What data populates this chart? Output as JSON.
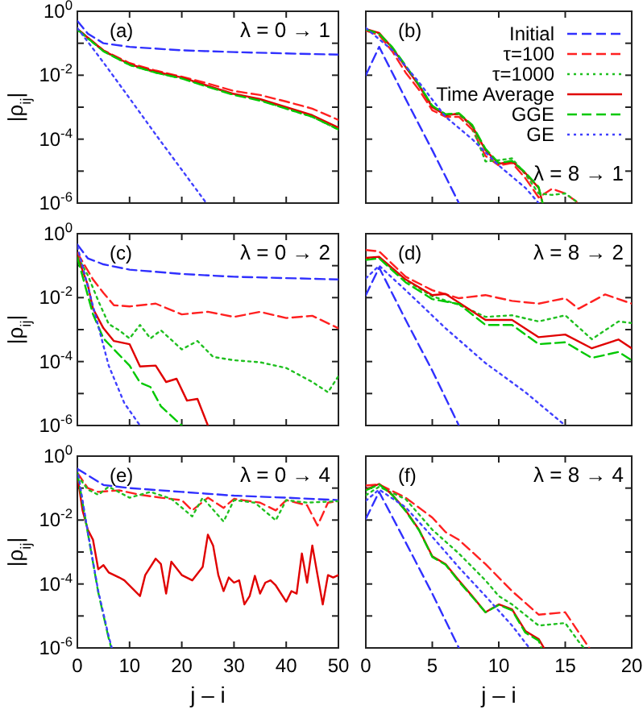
{
  "chart_data": [
    {
      "type": "line",
      "ylabel": "|ρ$_{ij}$|",
      "annotations": [
        "(a)",
        "λ = 0 → 1"
      ],
      "log": "y",
      "xlim": [
        0,
        50
      ],
      "xticks": [
        0,
        10,
        20,
        30,
        40,
        50
      ],
      "ylim": [
        1e-06,
        1
      ],
      "yticks": [
        {
          "value": 1,
          "label": "10$^{0}$"
        },
        {
          "value": 0.1,
          "label": null
        },
        {
          "value": 0.01,
          "label": "10$^{-2}$"
        },
        {
          "value": 0.001,
          "label": null
        },
        {
          "value": 0.0001,
          "label": "10$^{-4}$"
        },
        {
          "value": 1e-05,
          "label": null
        },
        {
          "value": 1e-06,
          "label": "10$^{-6}$"
        }
      ],
      "tick_labels": "y",
      "series": [
        {
          "color": "#3030ff",
          "line_style": "dashed",
          "x": [
            0,
            2,
            5,
            10,
            20,
            30,
            40,
            50
          ],
          "values": [
            0.5,
            0.2,
            0.1,
            0.077,
            0.06,
            0.053,
            0.048,
            0.044
          ]
        },
        {
          "color": "#ff2020",
          "line_style": "dashed",
          "x": [
            0,
            5,
            10,
            15,
            20,
            25,
            30,
            35,
            40,
            45,
            50
          ],
          "values": [
            0.28,
            0.06,
            0.024,
            0.014,
            0.009,
            0.0055,
            0.0032,
            0.0024,
            0.0015,
            0.0009,
            0.0004
          ]
        },
        {
          "color": "#20c020",
          "line_style": "dotted",
          "x": [
            0,
            5,
            10,
            15,
            20,
            25,
            30,
            35,
            40,
            45,
            50
          ],
          "values": [
            0.26,
            0.057,
            0.021,
            0.012,
            0.008,
            0.0045,
            0.0025,
            0.0017,
            0.0009,
            0.0005,
            0.0002
          ]
        },
        {
          "color": "#e00000",
          "line_style": "solid",
          "x": [
            0,
            5,
            10,
            15,
            20,
            25,
            30,
            35,
            40,
            45,
            50
          ],
          "values": [
            0.28,
            0.059,
            0.022,
            0.013,
            0.0085,
            0.0047,
            0.0026,
            0.0018,
            0.001,
            0.00056,
            0.00023
          ]
        },
        {
          "color": "#00c800",
          "line_style": "dashed",
          "x": [
            0,
            5,
            10,
            15,
            20,
            25,
            30,
            35,
            40,
            45,
            50
          ],
          "values": [
            0.27,
            0.056,
            0.021,
            0.012,
            0.0079,
            0.0043,
            0.0024,
            0.0016,
            0.0009,
            0.0005,
            0.0002
          ]
        },
        {
          "color": "#4040ff",
          "line_style": "dotted",
          "x": [
            0,
            5,
            10,
            15,
            20,
            24.7
          ],
          "values": [
            0.3,
            0.025,
            0.0019,
            0.00014,
            1.1e-05,
            1e-06
          ]
        }
      ]
    },
    {
      "type": "line",
      "annotations": [
        "(b)",
        "λ = 8 → 1"
      ],
      "log": "y",
      "xlim": [
        0,
        20
      ],
      "xticks": [
        0,
        5,
        10,
        15,
        20
      ],
      "ylim": [
        1e-06,
        1
      ],
      "yticks": [
        {
          "value": 1,
          "label": null
        },
        {
          "value": 0.1,
          "label": null
        },
        {
          "value": 0.01,
          "label": null
        },
        {
          "value": 0.001,
          "label": null
        },
        {
          "value": 0.0001,
          "label": null
        },
        {
          "value": 1e-05,
          "label": null
        },
        {
          "value": 1e-06,
          "label": null
        }
      ],
      "tick_labels": false,
      "legend": "top right",
      "series": [
        {
          "name": "Initial",
          "color": "#3030ff",
          "line_style": "dashed",
          "x": [
            0,
            1,
            3,
            5,
            7
          ],
          "values": [
            0.01,
            0.077,
            0.0018,
            4.5e-05,
            1e-06
          ]
        },
        {
          "name": "τ=100",
          "color": "#ff2020",
          "line_style": "dashed",
          "x": [
            0,
            1,
            2,
            3,
            4,
            5,
            6,
            7,
            8,
            9,
            10,
            11,
            12,
            13,
            14,
            15,
            16
          ],
          "values": [
            0.25,
            0.18,
            0.055,
            0.012,
            0.0035,
            0.0008,
            0.0005,
            0.0005,
            0.0002,
            3e-05,
            1.5e-05,
            1.8e-05,
            6e-06,
            1.5e-06,
            2.8e-06,
            2e-06,
            1e-06
          ]
        },
        {
          "name": "τ=1000",
          "color": "#20c020",
          "line_style": "dotted",
          "x": [
            0,
            1,
            2,
            3,
            4,
            5,
            6,
            7,
            8,
            9,
            10,
            11,
            12,
            13,
            14,
            15,
            16
          ],
          "values": [
            0.27,
            0.2,
            0.07,
            0.018,
            0.005,
            0.0011,
            0.0006,
            0.0006,
            0.00025,
            2e-05,
            2.2e-05,
            2.5e-05,
            8e-06,
            2e-06,
            1.8e-06,
            2e-06,
            1e-06
          ]
        },
        {
          "name": "Time Average",
          "color": "#e00000",
          "line_style": "solid",
          "x": [
            0,
            1,
            2,
            3,
            4,
            5,
            6,
            7,
            8,
            9,
            10,
            11,
            12,
            13,
            13.3
          ],
          "values": [
            0.28,
            0.21,
            0.071,
            0.018,
            0.0047,
            0.001,
            0.00056,
            0.00063,
            0.00026,
            4.5e-05,
            1.7e-05,
            2e-05,
            8.7e-06,
            3e-06,
            1e-06
          ]
        },
        {
          "name": "GGE",
          "color": "#00c800",
          "line_style": "dashed",
          "x": [
            0,
            1,
            2,
            3,
            4,
            5,
            6,
            7,
            8,
            9,
            10,
            11,
            12,
            13,
            13.3
          ],
          "values": [
            0.27,
            0.2,
            0.075,
            0.02,
            0.005,
            0.0011,
            0.0006,
            0.00065,
            0.00028,
            5e-05,
            1.8e-05,
            2.1e-05,
            9e-06,
            3.2e-06,
            1e-06
          ]
        },
        {
          "name": "GE",
          "color": "#4040ff",
          "line_style": "dotted",
          "x": [
            0,
            2,
            4,
            6,
            8,
            10,
            12,
            13
          ],
          "values": [
            0.3,
            0.06,
            0.006,
            0.0005,
            0.0001,
            1.5e-05,
            3e-06,
            1e-06
          ]
        }
      ]
    },
    {
      "type": "line",
      "ylabel": "|ρ$_{ij}$|",
      "annotations": [
        "(c)",
        "λ = 0 → 2"
      ],
      "log": "y",
      "xlim": [
        0,
        50
      ],
      "xticks": [
        0,
        10,
        20,
        30,
        40,
        50
      ],
      "ylim": [
        1e-06,
        1
      ],
      "yticks": [
        {
          "value": 1,
          "label": "10$^{0}$"
        },
        {
          "value": 0.1,
          "label": null
        },
        {
          "value": 0.01,
          "label": "10$^{-2}$"
        },
        {
          "value": 0.001,
          "label": null
        },
        {
          "value": 0.0001,
          "label": "10$^{-4}$"
        },
        {
          "value": 1e-05,
          "label": null
        },
        {
          "value": 1e-06,
          "label": "10$^{-6}$"
        }
      ],
      "tick_labels": "y",
      "series": [
        {
          "color": "#3030ff",
          "line_style": "dashed",
          "x": [
            0,
            2,
            5,
            10,
            20,
            30,
            50
          ],
          "values": [
            0.46,
            0.17,
            0.11,
            0.075,
            0.055,
            0.045,
            0.037
          ]
        },
        {
          "color": "#ff2020",
          "line_style": "dashed",
          "x": [
            0,
            3,
            5,
            7,
            10,
            15,
            20,
            25,
            30,
            35,
            40,
            45,
            50
          ],
          "values": [
            0.25,
            0.037,
            0.014,
            0.0058,
            0.0053,
            0.0065,
            0.003,
            0.0036,
            0.0025,
            0.0036,
            0.0023,
            0.0027,
            0.0011
          ]
        },
        {
          "color": "#20c020",
          "line_style": "dotted",
          "x": [
            0,
            2,
            4,
            6,
            8,
            10,
            12,
            14,
            16,
            20,
            23,
            26,
            30,
            35,
            40,
            45,
            48,
            50
          ],
          "values": [
            0.2,
            0.05,
            0.008,
            0.0015,
            0.00095,
            0.00053,
            0.0014,
            0.00053,
            0.00095,
            0.00024,
            0.00044,
            0.00014,
            0.00011,
            9.5e-05,
            6.3e-05,
            2.3e-05,
            1.1e-05,
            3.5e-05
          ]
        },
        {
          "color": "#e00000",
          "line_style": "solid",
          "x": [
            0,
            2,
            3,
            5,
            7,
            10,
            12,
            15,
            17,
            19,
            21,
            23,
            25
          ],
          "values": [
            0.2,
            0.025,
            0.0045,
            0.0011,
            0.00044,
            0.00035,
            7e-05,
            7.5e-05,
            2.3e-05,
            2.9e-05,
            6e-06,
            6.8e-06,
            1e-06
          ]
        },
        {
          "color": "#00c800",
          "line_style": "dashed",
          "x": [
            0,
            3,
            5,
            7,
            10,
            12,
            14,
            16,
            20
          ],
          "values": [
            0.18,
            0.003,
            0.00053,
            0.00024,
            7.5e-05,
            2.2e-05,
            1.6e-05,
            4e-06,
            1e-06
          ]
        },
        {
          "color": "#4040ff",
          "line_style": "dotted",
          "x": [
            0,
            3,
            6,
            9,
            12
          ],
          "values": [
            0.4,
            0.0054,
            7.5e-05,
            5e-06,
            1e-06
          ]
        }
      ]
    },
    {
      "type": "line",
      "annotations": [
        "(d)",
        "λ = 8 → 2"
      ],
      "log": "y",
      "xlim": [
        0,
        20
      ],
      "xticks": [
        0,
        5,
        10,
        15,
        20
      ],
      "ylim": [
        1e-06,
        1
      ],
      "yticks": [
        {
          "value": 1,
          "label": null
        },
        {
          "value": 0.1,
          "label": null
        },
        {
          "value": 0.01,
          "label": null
        },
        {
          "value": 0.001,
          "label": null
        },
        {
          "value": 0.0001,
          "label": null
        },
        {
          "value": 1e-05,
          "label": null
        },
        {
          "value": 1e-06,
          "label": null
        }
      ],
      "tick_labels": false,
      "series": [
        {
          "color": "#3030ff",
          "line_style": "dashed",
          "x": [
            0,
            1,
            3,
            5,
            7
          ],
          "values": [
            0.012,
            0.087,
            0.002,
            5.2e-05,
            1e-06
          ]
        },
        {
          "color": "#ff2020",
          "line_style": "dashed",
          "x": [
            0,
            1,
            3,
            5,
            7,
            9,
            11,
            13,
            15,
            16,
            18,
            20
          ],
          "values": [
            0.31,
            0.28,
            0.045,
            0.017,
            0.0096,
            0.012,
            0.0079,
            0.0065,
            0.0096,
            0.0045,
            0.0126,
            0.0065
          ]
        },
        {
          "color": "#20c020",
          "line_style": "dotted",
          "x": [
            0,
            1,
            3,
            5,
            7,
            9,
            11,
            13,
            15,
            17,
            19,
            20
          ],
          "values": [
            0.16,
            0.18,
            0.035,
            0.011,
            0.006,
            0.0025,
            0.0028,
            0.0018,
            0.0028,
            0.0005,
            0.0018,
            0.0016
          ]
        },
        {
          "color": "#e00000",
          "line_style": "solid",
          "x": [
            0,
            1,
            3,
            5,
            6,
            9,
            11,
            13,
            15,
            17,
            19,
            20
          ],
          "values": [
            0.175,
            0.19,
            0.037,
            0.012,
            0.013,
            0.002,
            0.002,
            0.00058,
            0.0007,
            0.00026,
            0.00049,
            0.00026
          ]
        },
        {
          "color": "#00c800",
          "line_style": "dashed",
          "x": [
            0,
            1,
            3,
            5,
            7,
            9,
            11,
            13,
            15,
            17,
            19,
            20
          ],
          "values": [
            0.15,
            0.17,
            0.03,
            0.009,
            0.0063,
            0.0014,
            0.0014,
            0.00035,
            0.0004,
            0.00013,
            0.0002,
            0.00011
          ]
        },
        {
          "color": "#4040ff",
          "line_style": "dotted",
          "x": [
            0,
            1,
            3,
            6,
            9,
            12,
            15
          ],
          "values": [
            0.04,
            0.1,
            0.017,
            0.0011,
            9e-05,
            1.1e-05,
            1e-06
          ]
        }
      ]
    },
    {
      "type": "line",
      "xlabel": "j – i",
      "ylabel": "|ρ$_{ij}$|",
      "annotations": [
        "(e)",
        "λ = 0 → 4"
      ],
      "log": "y",
      "xlim": [
        0,
        50
      ],
      "xticks": [
        0,
        10,
        20,
        30,
        40,
        50
      ],
      "ylim": [
        1e-06,
        1
      ],
      "yticks": [
        {
          "value": 1,
          "label": "10$^{0}$"
        },
        {
          "value": 0.1,
          "label": null
        },
        {
          "value": 0.01,
          "label": "10$^{-2}$"
        },
        {
          "value": 0.001,
          "label": null
        },
        {
          "value": 0.0001,
          "label": "10$^{-4}$"
        },
        {
          "value": 1e-05,
          "label": null
        },
        {
          "value": 1e-06,
          "label": "10$^{-6}$"
        }
      ],
      "series": [
        {
          "color": "#3030ff",
          "line_style": "dashed",
          "x": [
            0,
            5,
            10,
            20,
            30,
            40,
            50
          ],
          "values": [
            0.4,
            0.125,
            0.1,
            0.076,
            0.058,
            0.05,
            0.042
          ]
        },
        {
          "color": "#ff2020",
          "line_style": "dashed",
          "x": [
            0,
            2,
            4,
            8,
            12,
            16,
            20,
            22,
            25,
            28,
            30,
            35,
            38,
            40,
            44,
            46,
            48,
            50
          ],
          "values": [
            0.3,
            0.1,
            0.076,
            0.085,
            0.062,
            0.05,
            0.042,
            0.02,
            0.05,
            0.024,
            0.046,
            0.035,
            0.02,
            0.042,
            0.029,
            0.0067,
            0.035,
            0.039
          ]
        },
        {
          "color": "#20c020",
          "line_style": "dotted",
          "x": [
            0,
            2,
            4,
            6,
            10,
            14,
            18,
            22,
            24,
            28,
            30,
            34,
            38,
            40,
            44,
            50
          ],
          "values": [
            0.25,
            0.09,
            0.062,
            0.11,
            0.05,
            0.076,
            0.046,
            0.013,
            0.05,
            0.009,
            0.042,
            0.035,
            0.0098,
            0.042,
            0.035,
            0.039
          ]
        },
        {
          "color": "#e00000",
          "line_style": "solid",
          "x": [
            0,
            1,
            2,
            3,
            4,
            5,
            6,
            8,
            9,
            12,
            13,
            15,
            16,
            17,
            18,
            20,
            22,
            24,
            25,
            26,
            27,
            28,
            29,
            30,
            31,
            32,
            33,
            34,
            35,
            36,
            37,
            38,
            40,
            41,
            42,
            43,
            44,
            45,
            46,
            47,
            48,
            49,
            50
          ],
          "values": [
            0.25,
            0.02,
            0.005,
            0.0024,
            0.00029,
            0.00039,
            0.00023,
            0.00016,
            0.00013,
            4.2e-05,
            0.00019,
            0.00062,
            0.00042,
            5e-05,
            0.0005,
            0.00019,
            0.00013,
            0.00034,
            0.0035,
            0.0016,
            0.00019,
            6e-05,
            0.00016,
            0.00011,
            0.00013,
            2.3e-05,
            4.2e-05,
            0.00018,
            5e-05,
            0.00011,
            0.00013,
            9e-05,
            2.8e-05,
            6e-05,
            5e-05,
            0.0009,
            0.00011,
            0.0016,
            0.00019,
            2.3e-05,
            0.00019,
            0.00016,
            0.00019
          ]
        },
        {
          "color": "#00c800",
          "line_style": "dashed",
          "x": [
            0,
            2,
            4,
            6,
            6.5
          ],
          "values": [
            0.3,
            0.004,
            5.5e-05,
            2e-06,
            1e-06
          ]
        },
        {
          "color": "#4040ff",
          "line_style": "dotted",
          "x": [
            0,
            2,
            4,
            6,
            6.6
          ],
          "values": [
            0.4,
            0.0042,
            6e-05,
            2.3e-06,
            1e-06
          ]
        }
      ]
    },
    {
      "type": "line",
      "xlabel": "j – i",
      "annotations": [
        "(f)",
        "λ = 8 → 4"
      ],
      "log": "y",
      "xlim": [
        0,
        20
      ],
      "xticks": [
        0,
        5,
        10,
        15,
        20
      ],
      "ylim": [
        1e-06,
        1
      ],
      "yticks": [
        {
          "value": 1,
          "label": null
        },
        {
          "value": 0.1,
          "label": null
        },
        {
          "value": 0.01,
          "label": null
        },
        {
          "value": 0.001,
          "label": null
        },
        {
          "value": 0.0001,
          "label": null
        },
        {
          "value": 1e-05,
          "label": null
        },
        {
          "value": 1e-06,
          "label": null
        }
      ],
      "tick_labels": "x",
      "series": [
        {
          "color": "#3030ff",
          "line_style": "dashed",
          "x": [
            0,
            1,
            3,
            5,
            7
          ],
          "values": [
            0.011,
            0.076,
            0.002,
            5e-05,
            1e-06
          ]
        },
        {
          "color": "#ff2020",
          "line_style": "dashed",
          "x": [
            0,
            1,
            3,
            5,
            6,
            7,
            9,
            11,
            13,
            15,
            16.8
          ],
          "values": [
            0.12,
            0.13,
            0.05,
            0.012,
            0.0042,
            0.0024,
            0.00042,
            6e-05,
            1.1e-05,
            1.3e-05,
            1e-06
          ]
        },
        {
          "color": "#20c020",
          "line_style": "dotted",
          "x": [
            0,
            1,
            3,
            5,
            7,
            9,
            10,
            11,
            13,
            15,
            16,
            16.4
          ],
          "values": [
            0.06,
            0.11,
            0.045,
            0.005,
            0.0009,
            0.00013,
            4.2e-05,
            2.3e-05,
            5e-06,
            6e-06,
            1.6e-06,
            1e-06
          ]
        },
        {
          "color": "#e00000",
          "line_style": "solid",
          "x": [
            0,
            1,
            2,
            3,
            4,
            5,
            6,
            7,
            8,
            9,
            10,
            11,
            12,
            13,
            13.4
          ],
          "values": [
            0.09,
            0.135,
            0.062,
            0.02,
            0.005,
            0.00074,
            0.00042,
            0.00013,
            4.2e-05,
            1.3e-05,
            2.3e-05,
            1.6e-05,
            3.4e-06,
            1.9e-06,
            1e-06
          ]
        },
        {
          "color": "#00c800",
          "line_style": "dashed",
          "x": [
            0,
            1,
            2,
            3,
            4,
            5,
            6,
            7,
            8,
            9,
            10,
            11,
            12,
            13,
            13.2
          ],
          "values": [
            0.085,
            0.13,
            0.06,
            0.019,
            0.0048,
            0.0007,
            0.0004,
            0.00012,
            4e-05,
            1.3e-05,
            2.2e-05,
            1.5e-05,
            3e-06,
            1.7e-06,
            1e-06
          ]
        },
        {
          "color": "#4040ff",
          "line_style": "dotted",
          "x": [
            0,
            1,
            3,
            5,
            7,
            9,
            11,
            12.3
          ],
          "values": [
            0.04,
            0.09,
            0.025,
            0.003,
            0.00033,
            4.2e-05,
            5e-06,
            1e-06
          ]
        }
      ]
    }
  ]
}
